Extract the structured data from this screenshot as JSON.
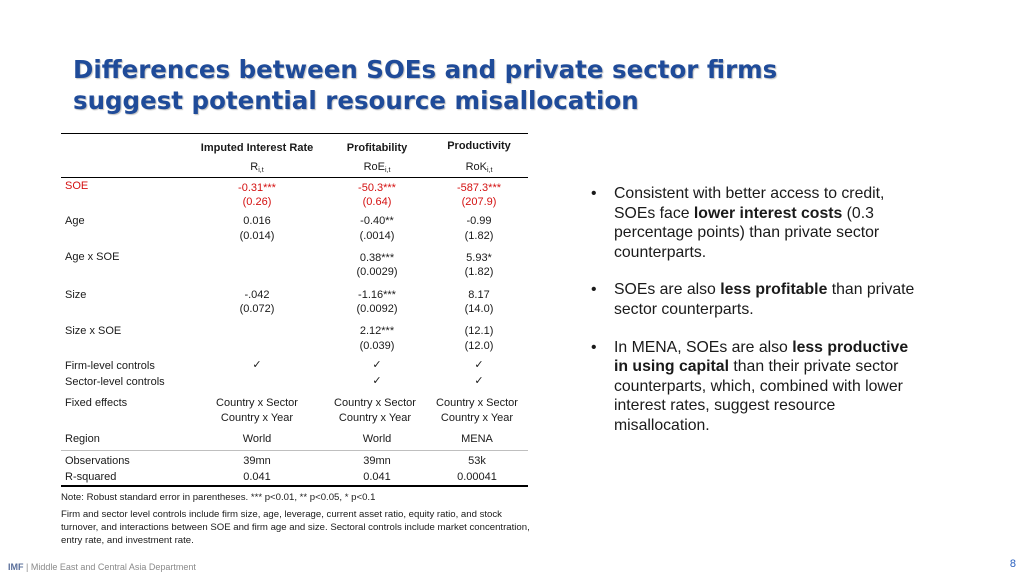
{
  "slide": {
    "title_lines": [
      "Differences between SOEs and private sector firms",
      "suggest potential resource misallocation"
    ]
  },
  "table": {
    "headers": [
      "Imputed Interest Rate",
      "Profitability",
      "Productivity"
    ],
    "subheaders": [
      {
        "base": "R",
        "sub": "i,t"
      },
      {
        "base": "RoE",
        "sub": "i,t"
      },
      {
        "base": "RoK",
        "sub": "i,t"
      }
    ],
    "rows": [
      {
        "label": "SOE",
        "c1": "-0.31***",
        "c2": "-50.3***",
        "c3": "-587.3***"
      },
      {
        "label": "",
        "c1": "(0.26)",
        "c2": "(0.64)",
        "c3": "(207.9)"
      },
      {
        "label": "Age",
        "c1": "0.016",
        "c2": "-0.40**",
        "c3": "-0.99"
      },
      {
        "label": "",
        "c1": "(0.014)",
        "c2": "(.0014)",
        "c3": "(1.82)"
      },
      {
        "label": "Age x SOE",
        "c1": "",
        "c2": "0.38***",
        "c3": "5.93*"
      },
      {
        "label": "",
        "c1": "",
        "c2": "(0.0029)",
        "c3": "(1.82)"
      },
      {
        "label": "Size",
        "c1": "-.042",
        "c2": "-1.16***",
        "c3": "8.17"
      },
      {
        "label": "",
        "c1": "(0.072)",
        "c2": "(0.0092)",
        "c3": "(14.0)"
      },
      {
        "label": "Size x SOE",
        "c1": "",
        "c2": "2.12***",
        "c3": "(12.1)"
      },
      {
        "label": "",
        "c1": "",
        "c2": "(0.039)",
        "c3": "(12.0)"
      },
      {
        "label": "Firm-level controls",
        "c1": "✓",
        "c2": "✓",
        "c3": "✓"
      },
      {
        "label": "Sector-level controls",
        "c1": "",
        "c2": "✓",
        "c3": "✓"
      },
      {
        "label": "Fixed effects",
        "c1": "Country x Sector",
        "c2": "Country x Sector",
        "c3": "Country x Sector"
      },
      {
        "label": "",
        "c1": "Country x Year",
        "c2": "Country x Year",
        "c3": "Country x Year"
      },
      {
        "label": "Region",
        "c1": "World",
        "c2": "World",
        "c3": "MENA"
      },
      {
        "label": "Observations",
        "c1": "39mn",
        "c2": "39mn",
        "c3": "53k"
      },
      {
        "label": "R-squared",
        "c1": "0.041",
        "c2": "0.041",
        "c3": "0.00041"
      }
    ],
    "note1": "Note: Robust standard error in parentheses. *** p<0.01, ** p<0.05, * p<0.1",
    "note2": "Firm and sector level controls include firm size, age, leverage, current asset ratio, equity ratio, and stock turnover, and interactions between SOE and firm age and size.  Sectoral controls include market concentration, entry rate, and investment rate."
  },
  "bullets": {
    "b1_pre": "Consistent with better access to credit, SOEs face ",
    "b1_bold": "lower interest costs",
    "b1_post": " (0.3 percentage points) than private sector counterparts.",
    "b2_pre": "SOEs are also ",
    "b2_bold": "less profitable",
    "b2_post": " than private sector counterparts.",
    "b3_pre": "In MENA, SOEs are also ",
    "b3_bold": "less productive in using capital",
    "b3_post": " than their private sector counterparts,  which, combined with lower interest rates, suggest resource misallocation."
  },
  "footer": {
    "org": "IMF",
    "separator": " | ",
    "department": "Middle East and Central Asia Department",
    "page_number": "8"
  },
  "colors": {
    "title": "#1f4b99",
    "soe_row": "#d41111",
    "page_number": "#2a60c0"
  }
}
